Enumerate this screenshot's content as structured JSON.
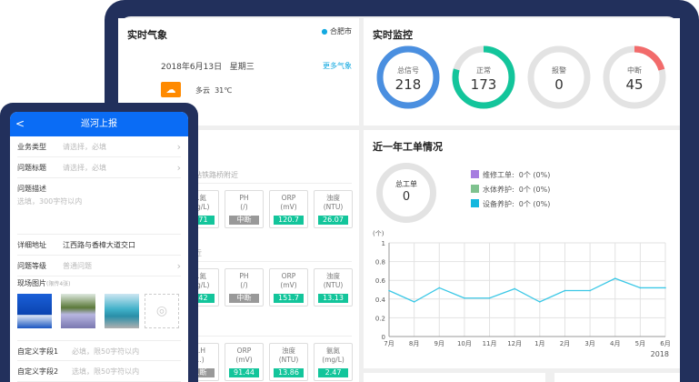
{
  "weather": {
    "title": "实时气象",
    "city": "合肥市",
    "date": "2018年6月13日",
    "weekday": "星期三",
    "more": "更多气象",
    "condition": "多云",
    "temp": "31℃",
    "icon": "partly-cloudy-icon"
  },
  "monitor": {
    "title": "实时监控",
    "items": [
      {
        "label": "总信号",
        "value": "218",
        "fraction": 1,
        "color": "#4a8fe0"
      },
      {
        "label": "正常",
        "value": "173",
        "fraction": 0.794,
        "color": "#13c59b"
      },
      {
        "label": "报警",
        "value": "0",
        "fraction": 0,
        "color": "#e05050"
      },
      {
        "label": "中断",
        "value": "45",
        "fraction": 0.206,
        "color": "#f26b6b"
      }
    ]
  },
  "stations": [
    {
      "name": "…处理站铁路桥附近",
      "tiles": [
        {
          "name": "…氮",
          "unit": "…g/L)",
          "value": "…71"
        },
        {
          "name": "PH",
          "unit": "(/)",
          "value": "中断",
          "off": true
        },
        {
          "name": "ORP",
          "unit": "(mV)",
          "value": "120.7"
        },
        {
          "name": "浊度",
          "unit": "(NTU)",
          "value": "26.07"
        }
      ]
    },
    {
      "name": "…桥附近",
      "tiles": [
        {
          "name": "…氮",
          "unit": "…g/L)",
          "value": "…42"
        },
        {
          "name": "PH",
          "unit": "(/)",
          "value": "中断",
          "off": true
        },
        {
          "name": "ORP",
          "unit": "(mV)",
          "value": "151.7"
        },
        {
          "name": "浊度",
          "unit": "(NTU)",
          "value": "13.13"
        }
      ]
    },
    {
      "name": "…附近",
      "tiles": [
        {
          "name": "…H",
          "unit": "…)",
          "value": "…断",
          "off": true
        },
        {
          "name": "ORP",
          "unit": "(mV)",
          "value": "91.44"
        },
        {
          "name": "浊度",
          "unit": "(NTU)",
          "value": "13.86"
        },
        {
          "name": "氨氮",
          "unit": "(mg/L)",
          "value": "2.47"
        }
      ]
    }
  ],
  "workorders": {
    "title": "近一年工单情况",
    "total_label": "总工单",
    "total": "0",
    "legend": [
      {
        "label": "维修工单:",
        "value": "0个 (0%)",
        "color": "#a67de0"
      },
      {
        "label": "水体养护:",
        "value": "0个 (0%)",
        "color": "#7fc28f"
      },
      {
        "label": "设备养护:",
        "value": "0个 (0%)",
        "color": "#13b7de"
      }
    ]
  },
  "chart_data": {
    "type": "line",
    "ylabel": "(个)",
    "categories": [
      "7月",
      "8月",
      "9月",
      "10月",
      "11月",
      "12月",
      "1月",
      "2月",
      "3月",
      "4月",
      "5月",
      "6月"
    ],
    "values": [
      0.49,
      0.37,
      0.52,
      0.41,
      0.41,
      0.51,
      0.37,
      0.49,
      0.49,
      0.62,
      0.52,
      0.52
    ],
    "ylim": [
      0,
      1
    ],
    "yticks": [
      "0",
      "0.2",
      "0.4",
      "0.6",
      "0.8",
      "1"
    ],
    "xnote": "2018",
    "grid": true,
    "color": "#3cc8e6"
  },
  "phone": {
    "title": "巡河上报",
    "back": "<",
    "rows": [
      {
        "label": "业务类型",
        "placeholder": "请选择，必填"
      },
      {
        "label": "问题标题",
        "placeholder": "请选择，必填"
      }
    ],
    "desc_label": "问题描述",
    "desc_placeholder": "选填，300字符以内",
    "address_label": "详细地址",
    "address_value": "江西路与香樟大道交口",
    "level_label": "问题等级",
    "level_value": "普通问题",
    "photos_label": "现场图片",
    "photos_note": "(限传4张)",
    "custom1_label": "自定义字段1",
    "custom1_placeholder": "必填，限50字符以内",
    "custom2_label": "自定义字段2",
    "custom2_placeholder": "选填，限50字符以内"
  }
}
